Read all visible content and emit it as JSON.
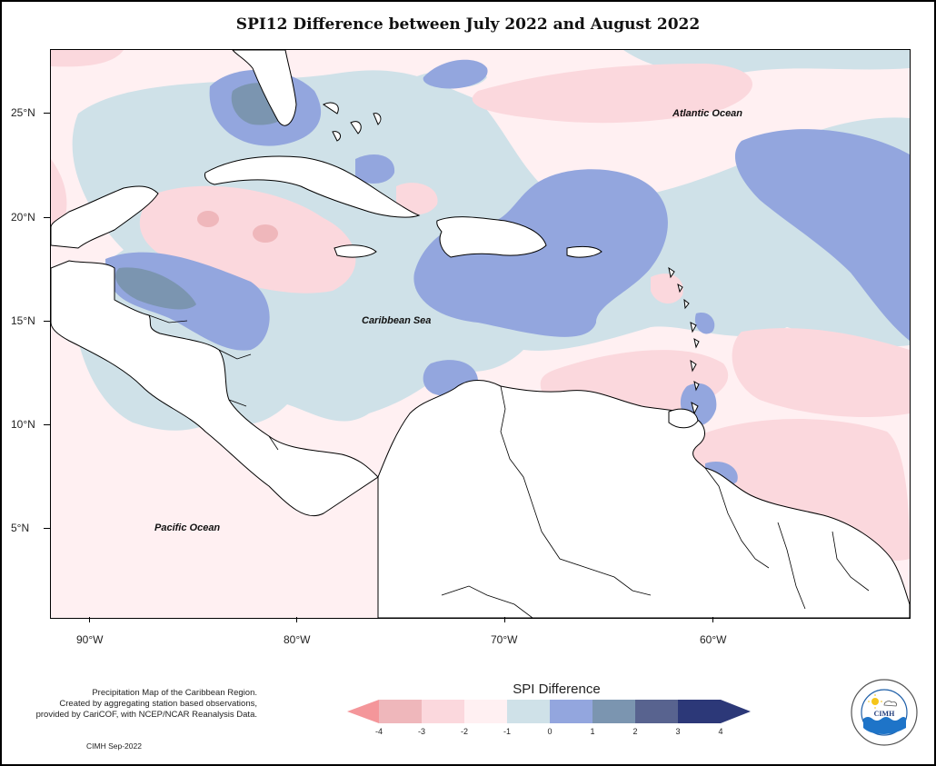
{
  "title": "SPI12 Difference between July 2022 and August 2022",
  "map": {
    "labels": {
      "atlantic": "Atlantic Ocean",
      "caribbean": "Caribbean Sea",
      "pacific": "Pacific Ocean"
    },
    "lat_ticks": [
      "25°N",
      "20°N",
      "15°N",
      "10°N",
      "5°N"
    ],
    "lon_ticks": [
      "90°W",
      "80°W",
      "70°W",
      "60°W"
    ]
  },
  "legend": {
    "title": "SPI Difference",
    "ticks": [
      "-4",
      "-3",
      "-2",
      "-1",
      "0",
      "1",
      "2",
      "3",
      "4"
    ],
    "colors": {
      "c_m4": "#f4969a",
      "c_m3": "#efb7bb",
      "c_m2": "#fbd8dd",
      "c_m1": "#fff0f2",
      "c_0": "#cfe1e8",
      "c_1": "#93a6de",
      "c_2": "#7b95b0",
      "c_3": "#58638f",
      "c_4": "#2c3878"
    }
  },
  "credits": {
    "line1": "Precipitation Map of the Caribbean Region.",
    "line2": "Created by aggregating station based observations,",
    "line3": "provided by CariCOF, with NCEP/NCAR Reanalysis Data.",
    "note": "CIMH Sep-2022"
  },
  "logo": {
    "text": "CIMH"
  }
}
